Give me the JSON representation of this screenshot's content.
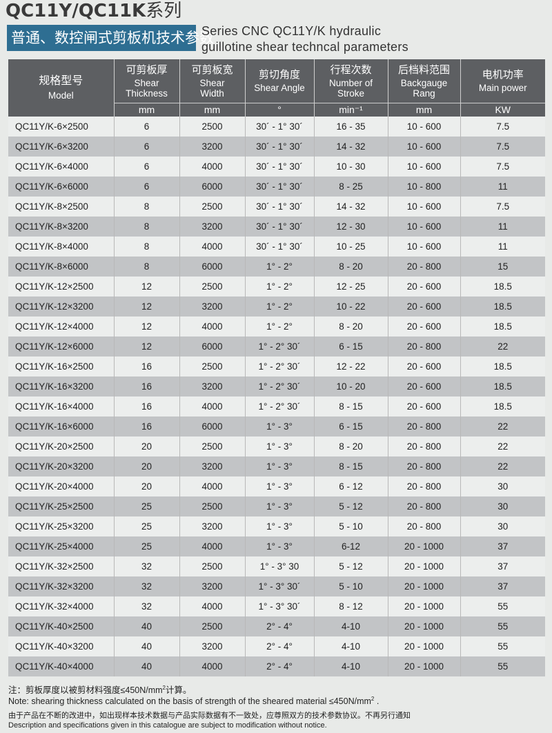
{
  "title": {
    "series": "QC11Y/QC11K",
    "series_cn": "系列",
    "band": "普通、数控闸式剪板机技术参数",
    "en_line1": "Series CNC QC11Y/K hydraulic",
    "en_line2": "guillotine shear techncal parameters"
  },
  "headers": [
    {
      "cn": "规格型号",
      "en": "Model",
      "unit": ""
    },
    {
      "cn": "可剪板厚",
      "en": "Shear Thickness",
      "unit": "mm"
    },
    {
      "cn": "可剪板宽",
      "en": "Shear Width",
      "unit": "mm"
    },
    {
      "cn": "剪切角度",
      "en": "Shear Angle",
      "unit": "°"
    },
    {
      "cn": "行程次数",
      "en": "Number of Stroke",
      "unit": "min⁻¹"
    },
    {
      "cn": "后档料范围",
      "en": "Backgauge Rang",
      "unit": "mm"
    },
    {
      "cn": "电机功率",
      "en": "Main power",
      "unit": "KW"
    }
  ],
  "rows": [
    [
      "QC11Y/K-6×2500",
      "6",
      "2500",
      "30´ - 1° 30´",
      "16 - 35",
      "10 - 600",
      "7.5"
    ],
    [
      "QC11Y/K-6×3200",
      "6",
      "3200",
      "30´ - 1° 30´",
      "14 - 32",
      "10 - 600",
      "7.5"
    ],
    [
      "QC11Y/K-6×4000",
      "6",
      "4000",
      "30´ - 1° 30´",
      "10 - 30",
      "10 - 600",
      "7.5"
    ],
    [
      "QC11Y/K-6×6000",
      "6",
      "6000",
      "30´ - 1° 30´",
      "8 - 25",
      "10 - 800",
      "11"
    ],
    [
      "QC11Y/K-8×2500",
      "8",
      "2500",
      "30´ - 1° 30´",
      "14 - 32",
      "10 - 600",
      "7.5"
    ],
    [
      "QC11Y/K-8×3200",
      "8",
      "3200",
      "30´ - 1° 30´",
      "12 - 30",
      "10 - 600",
      "11"
    ],
    [
      "QC11Y/K-8×4000",
      "8",
      "4000",
      "30´ - 1° 30´",
      "10 - 25",
      "10 - 600",
      "11"
    ],
    [
      "QC11Y/K-8×6000",
      "8",
      "6000",
      "1° - 2°",
      "8 - 20",
      "20 - 800",
      "15"
    ],
    [
      "QC11Y/K-12×2500",
      "12",
      "2500",
      "1° - 2°",
      "12 - 25",
      "20 - 600",
      "18.5"
    ],
    [
      "QC11Y/K-12×3200",
      "12",
      "3200",
      "1° - 2°",
      "10 - 22",
      "20 - 600",
      "18.5"
    ],
    [
      "QC11Y/K-12×4000",
      "12",
      "4000",
      "1° - 2°",
      "8 - 20",
      "20 - 600",
      "18.5"
    ],
    [
      "QC11Y/K-12×6000",
      "12",
      "6000",
      "1° - 2° 30´",
      "6 - 15",
      "20 - 800",
      "22"
    ],
    [
      "QC11Y/K-16×2500",
      "16",
      "2500",
      "1° - 2° 30´",
      "12 - 22",
      "20 - 600",
      "18.5"
    ],
    [
      "QC11Y/K-16×3200",
      "16",
      "3200",
      "1° - 2° 30´",
      "10 - 20",
      "20 - 600",
      "18.5"
    ],
    [
      "QC11Y/K-16×4000",
      "16",
      "4000",
      "1° - 2° 30´",
      "8 - 15",
      "20 - 600",
      "18.5"
    ],
    [
      "QC11Y/K-16×6000",
      "16",
      "6000",
      "1° - 3°",
      "6 - 15",
      "20 - 800",
      "22"
    ],
    [
      "QC11Y/K-20×2500",
      "20",
      "2500",
      "1° - 3°",
      "8 - 20",
      "20 - 800",
      "22"
    ],
    [
      "QC11Y/K-20×3200",
      "20",
      "3200",
      "1° - 3°",
      "8 - 15",
      "20 - 800",
      "22"
    ],
    [
      "QC11Y/K-20×4000",
      "20",
      "4000",
      "1° - 3°",
      "6 - 12",
      "20 - 800",
      "30"
    ],
    [
      "QC11Y/K-25×2500",
      "25",
      "2500",
      "1° - 3°",
      "5 - 12",
      "20 - 800",
      "30"
    ],
    [
      "QC11Y/K-25×3200",
      "25",
      "3200",
      "1° - 3°",
      "5 - 10",
      "20 - 800",
      "30"
    ],
    [
      "QC11Y/K-25×4000",
      "25",
      "4000",
      "1° - 3°",
      "6-12",
      "20 - 1000",
      "37"
    ],
    [
      "QC11Y/K-32×2500",
      "32",
      "2500",
      "1° - 3° 30",
      "5 - 12",
      "20 - 1000",
      "37"
    ],
    [
      "QC11Y/K-32×3200",
      "32",
      "3200",
      "1° - 3° 30´",
      "5 - 10",
      "20 - 1000",
      "37"
    ],
    [
      "QC11Y/K-32×4000",
      "32",
      "4000",
      "1° - 3° 30´",
      "8 - 12",
      "20 - 1000",
      "55"
    ],
    [
      "QC11Y/K-40×2500",
      "40",
      "2500",
      "2° - 4°",
      "4-10",
      "20 - 1000",
      "55"
    ],
    [
      "QC11Y/K-40×3200",
      "40",
      "3200",
      "2° - 4°",
      "4-10",
      "20 - 1000",
      "55"
    ],
    [
      "QC11Y/K-40×4000",
      "40",
      "4000",
      "2° - 4°",
      "4-10",
      "20 - 1000",
      "55"
    ]
  ],
  "notes": {
    "cn_note_a": "注：剪板厚度以被剪材料强度≤450N/mm",
    "cn_note_sup": "2",
    "cn_note_b": "计算。",
    "en_note_a": "Note: shearing thickness calculated on the basis of strength of the sheared material ≤450N/mm",
    "en_note_sup": "2",
    "en_note_b": " .",
    "cn_disclaimer": "由于产品在不断的改进中，如出现样本技术数据与产品实际数据有不一致处，应尊照双方的技术参数协议。不再另行通知",
    "en_disclaimer": "Description and specifications given in this catalogue are subject to modification without notice."
  }
}
